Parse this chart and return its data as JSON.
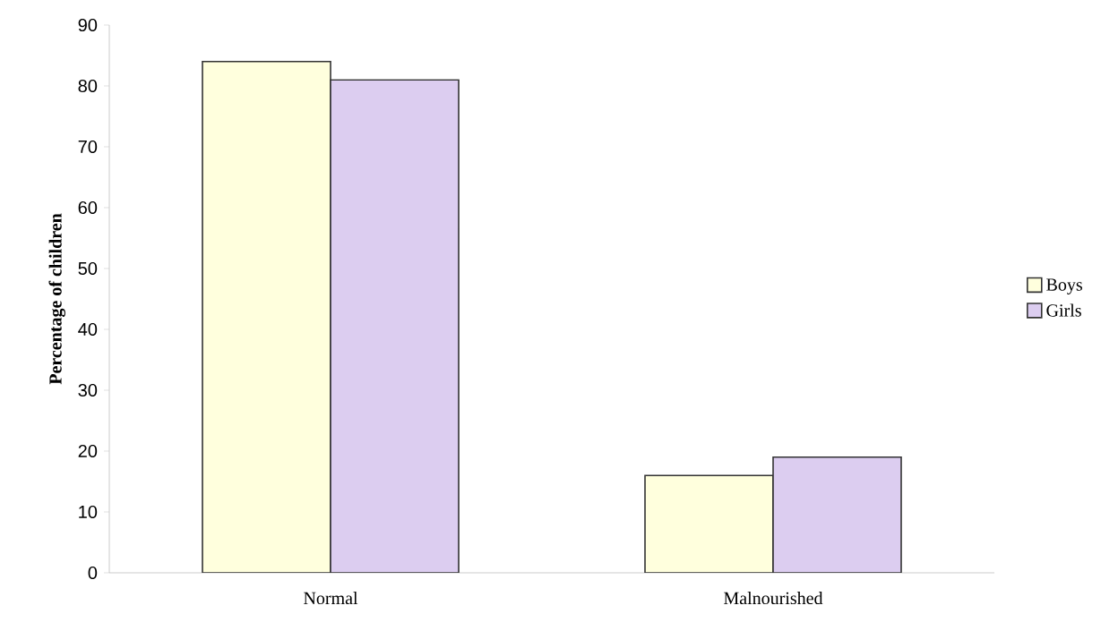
{
  "chart_data": {
    "type": "bar",
    "ylabel": "Percentage of children",
    "categories": [
      "Normal",
      "Malnourished"
    ],
    "series": [
      {
        "name": "Boys",
        "color": "#ffffdd",
        "values": [
          84,
          16
        ]
      },
      {
        "name": "Girls",
        "color": "#dccdf0",
        "values": [
          81,
          19
        ]
      }
    ],
    "ylim": [
      0,
      90
    ],
    "yticks": [
      0,
      10,
      20,
      30,
      40,
      50,
      60,
      70,
      80,
      90
    ],
    "grid": false,
    "legend": "right"
  }
}
